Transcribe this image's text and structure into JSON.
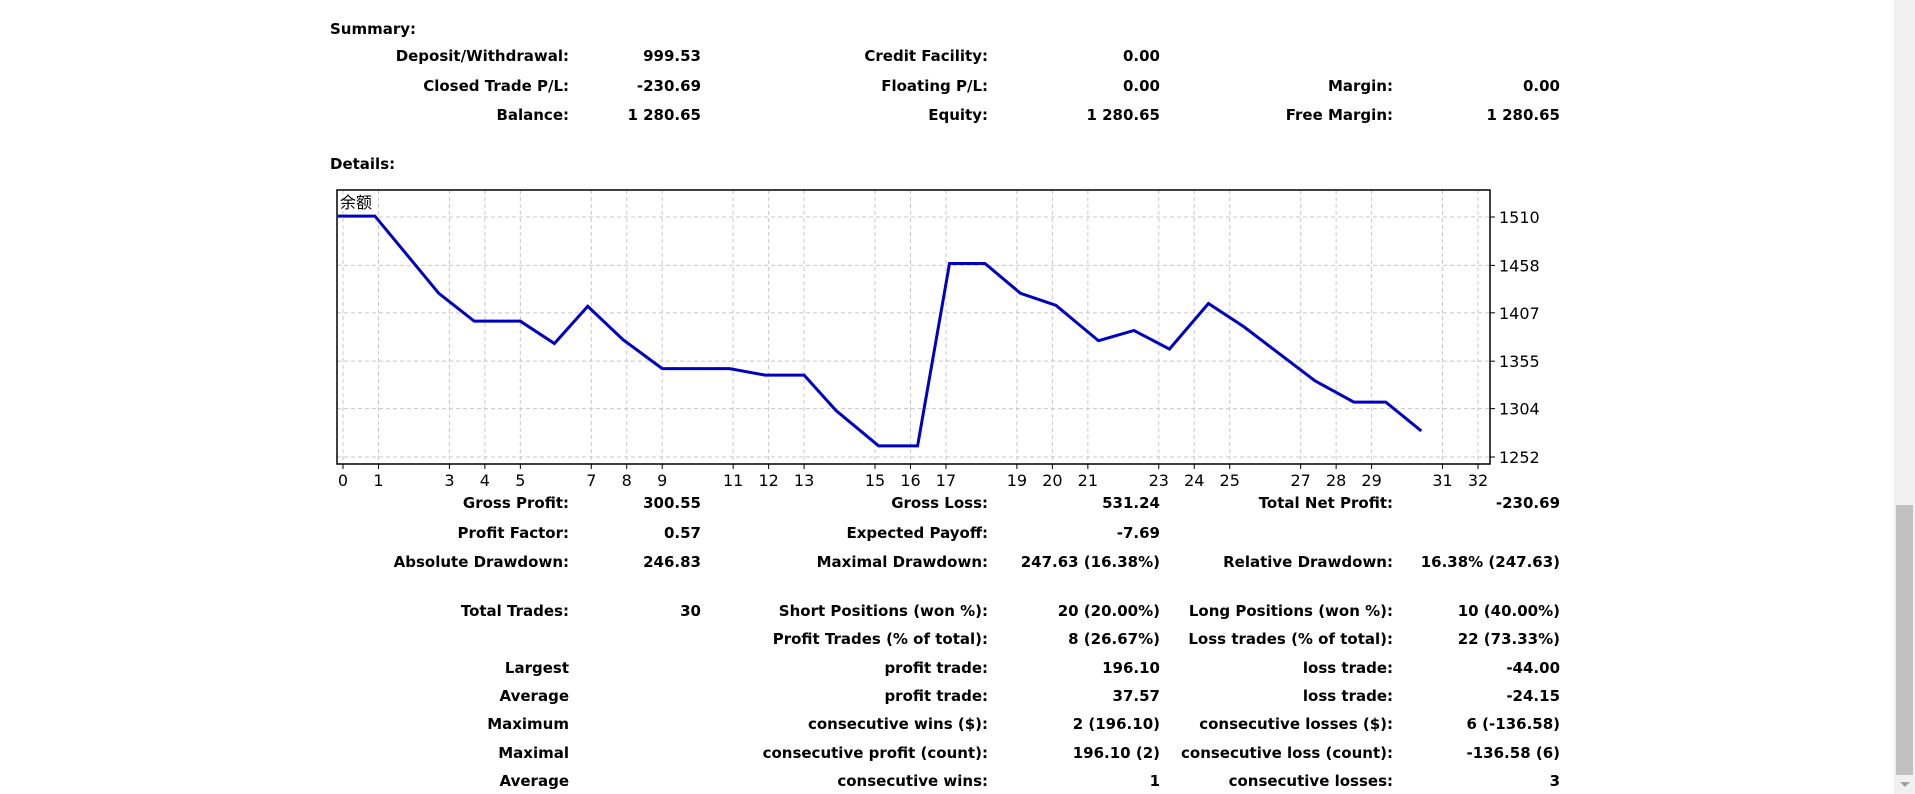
{
  "summary": {
    "title": "Summary:",
    "rows": [
      [
        {
          "l": "Deposit/Withdrawal:",
          "v": "999.53"
        },
        {
          "l": "Credit Facility:",
          "v": "0.00"
        },
        {
          "l": "",
          "v": ""
        }
      ],
      [
        {
          "l": "Closed Trade P/L:",
          "v": "-230.69"
        },
        {
          "l": "Floating P/L:",
          "v": "0.00"
        },
        {
          "l": "Margin:",
          "v": "0.00"
        }
      ],
      [
        {
          "l": "Balance:",
          "v": "1 280.65"
        },
        {
          "l": "Equity:",
          "v": "1 280.65"
        },
        {
          "l": "Free Margin:",
          "v": "1 280.65"
        }
      ]
    ]
  },
  "details": {
    "title": "Details:",
    "rows": [
      [
        {
          "l": "Gross Profit:",
          "v": "300.55"
        },
        {
          "l": "Gross Loss:",
          "v": "531.24"
        },
        {
          "l": "Total Net Profit:",
          "v": "-230.69"
        }
      ],
      [
        {
          "l": "Profit Factor:",
          "v": "0.57"
        },
        {
          "l": "Expected Payoff:",
          "v": "-7.69"
        },
        {
          "l": "",
          "v": ""
        }
      ],
      [
        {
          "l": "Absolute Drawdown:",
          "v": "246.83"
        },
        {
          "l": "Maximal Drawdown:",
          "v": "247.63 (16.38%)"
        },
        {
          "l": "Relative Drawdown:",
          "v": "16.38% (247.63)"
        }
      ],
      [
        {
          "l": "Total Trades:",
          "v": "30"
        },
        {
          "l": "Short Positions (won %):",
          "v": "20 (20.00%)"
        },
        {
          "l": "Long Positions (won %):",
          "v": "10 (40.00%)"
        }
      ],
      [
        {
          "l": "",
          "v": ""
        },
        {
          "l": "Profit Trades (% of total):",
          "v": "8 (26.67%)"
        },
        {
          "l": "Loss trades (% of total):",
          "v": "22 (73.33%)"
        }
      ],
      [
        {
          "l": "Largest",
          "v": ""
        },
        {
          "l": "profit trade:",
          "v": "196.10"
        },
        {
          "l": "loss trade:",
          "v": "-44.00"
        }
      ],
      [
        {
          "l": "Average",
          "v": ""
        },
        {
          "l": "profit trade:",
          "v": "37.57"
        },
        {
          "l": "loss trade:",
          "v": "-24.15"
        }
      ],
      [
        {
          "l": "Maximum",
          "v": ""
        },
        {
          "l": "consecutive wins ($):",
          "v": "2 (196.10)"
        },
        {
          "l": "consecutive losses ($):",
          "v": "6 (-136.58)"
        }
      ],
      [
        {
          "l": "Maximal",
          "v": ""
        },
        {
          "l": "consecutive profit (count):",
          "v": "196.10 (2)"
        },
        {
          "l": "consecutive loss (count):",
          "v": "-136.58 (6)"
        }
      ],
      [
        {
          "l": "Average",
          "v": ""
        },
        {
          "l": "consecutive wins:",
          "v": "1"
        },
        {
          "l": "consecutive losses:",
          "v": "3"
        }
      ]
    ]
  },
  "chart_data": {
    "type": "line",
    "title": "余额",
    "line_color": "#0000c0",
    "xlim": [
      0,
      32
    ],
    "ylim": [
      1252,
      1525
    ],
    "x_ticks": [
      0,
      1,
      3,
      4,
      5,
      7,
      8,
      9,
      11,
      12,
      13,
      15,
      16,
      17,
      19,
      20,
      21,
      23,
      24,
      25,
      27,
      28,
      29,
      31,
      32
    ],
    "y_ticks": [
      1510,
      1458,
      1407,
      1355,
      1304,
      1252
    ],
    "series": [
      {
        "name": "余额",
        "x": [
          -0.2,
          0.9,
          2.7,
          3.7,
          5.0,
          5.96,
          6.9,
          7.9,
          9.0,
          10.9,
          11.9,
          13.0,
          13.9,
          15.1,
          16.2,
          17.1,
          18.1,
          19.1,
          20.1,
          21.3,
          22.3,
          23.3,
          24.4,
          25.4,
          27.4,
          28.5,
          29.4,
          30.4
        ],
        "y": [
          1511,
          1511,
          1428,
          1398,
          1398,
          1374,
          1414,
          1378,
          1347,
          1347,
          1340,
          1340,
          1302,
          1264,
          1264,
          1460,
          1460,
          1428,
          1415,
          1377,
          1388,
          1368,
          1417,
          1392,
          1334,
          1311,
          1311,
          1280
        ]
      }
    ]
  }
}
